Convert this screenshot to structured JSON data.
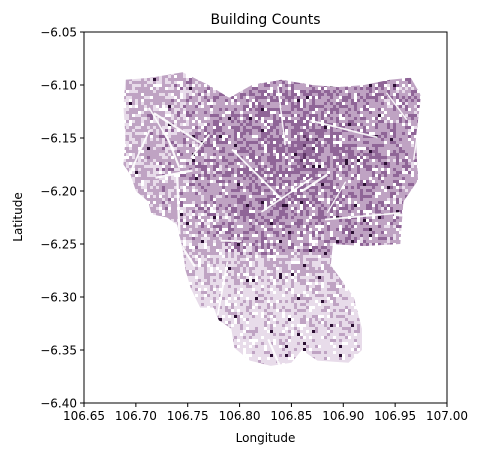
{
  "chart_data": {
    "type": "heatmap",
    "title": "Building Counts",
    "xlabel": "Longitude",
    "ylabel": "Latitude",
    "xlim": [
      106.65,
      107.0
    ],
    "ylim": [
      -6.4,
      -6.05
    ],
    "x_ticks": [
      "106.65",
      "106.70",
      "106.75",
      "106.80",
      "106.85",
      "106.90",
      "106.95",
      "107.00"
    ],
    "y_ticks": [
      "-6.05",
      "-6.10",
      "-6.15",
      "-6.20",
      "-6.25",
      "-6.30",
      "-6.35",
      "-6.40"
    ],
    "grid": false,
    "colormap": [
      "#e8dcea",
      "#bfa3c3",
      "#8f6597",
      "#5e3566",
      "#2b0f33"
    ],
    "region_outline_lonlat": [
      [
        106.69,
        -6.095
      ],
      [
        106.715,
        -6.093
      ],
      [
        106.745,
        -6.088
      ],
      [
        106.77,
        -6.1
      ],
      [
        106.79,
        -6.112
      ],
      [
        106.812,
        -6.1
      ],
      [
        106.84,
        -6.095
      ],
      [
        106.87,
        -6.1
      ],
      [
        106.895,
        -6.102
      ],
      [
        106.92,
        -6.1
      ],
      [
        106.945,
        -6.095
      ],
      [
        106.965,
        -6.093
      ],
      [
        106.975,
        -6.11
      ],
      [
        106.97,
        -6.15
      ],
      [
        106.972,
        -6.19
      ],
      [
        106.958,
        -6.21
      ],
      [
        106.955,
        -6.25
      ],
      [
        106.92,
        -6.252
      ],
      [
        106.89,
        -6.25
      ],
      [
        106.888,
        -6.27
      ],
      [
        106.91,
        -6.3
      ],
      [
        106.918,
        -6.33
      ],
      [
        106.918,
        -6.35
      ],
      [
        106.905,
        -6.362
      ],
      [
        106.875,
        -6.36
      ],
      [
        106.86,
        -6.35
      ],
      [
        106.85,
        -6.362
      ],
      [
        106.83,
        -6.365
      ],
      [
        106.81,
        -6.36
      ],
      [
        106.795,
        -6.348
      ],
      [
        106.792,
        -6.33
      ],
      [
        106.78,
        -6.322
      ],
      [
        106.775,
        -6.31
      ],
      [
        106.762,
        -6.31
      ],
      [
        106.753,
        -6.292
      ],
      [
        106.748,
        -6.275
      ],
      [
        106.745,
        -6.255
      ],
      [
        106.74,
        -6.232
      ],
      [
        106.73,
        -6.225
      ],
      [
        106.715,
        -6.222
      ],
      [
        106.712,
        -6.21
      ],
      [
        106.7,
        -6.2
      ],
      [
        106.695,
        -6.185
      ],
      [
        106.688,
        -6.175
      ],
      [
        106.69,
        -6.15
      ],
      [
        106.688,
        -6.12
      ]
    ]
  }
}
